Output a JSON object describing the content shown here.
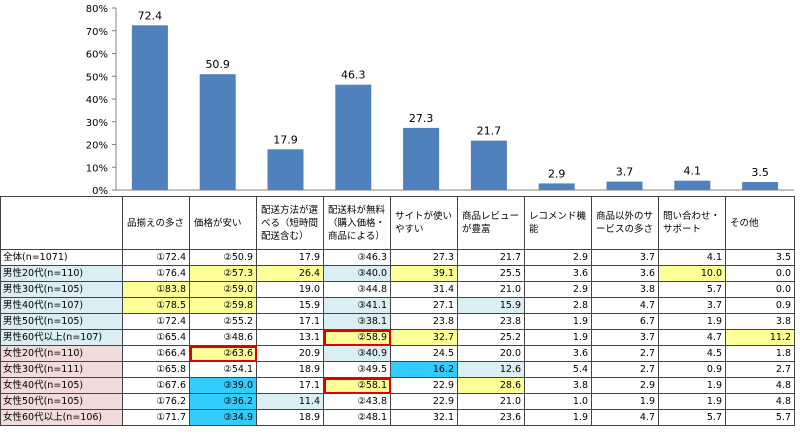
{
  "chart_data": {
    "type": "bar",
    "categories": [
      "品揃えの多さ",
      "価格が安い",
      "配送方法が選べる（短時間配送含む）",
      "配送料が無料（購入価格・商品による）",
      "サイトが使いやすい",
      "商品レビューが豊富",
      "レコメンド機能",
      "商品以外のサービスの多さ",
      "問い合わせ・サポート",
      "その他"
    ],
    "values": [
      72.4,
      50.9,
      17.9,
      46.3,
      27.3,
      21.7,
      2.9,
      3.7,
      4.1,
      3.5
    ],
    "value_labels": [
      "72.4",
      "50.9",
      "17.9",
      "46.3",
      "27.3",
      "21.7",
      "2.9",
      "3.7",
      "4.1",
      "3.5"
    ],
    "ylim": [
      0,
      80
    ],
    "yticks": [
      "0%",
      "10%",
      "20%",
      "30%",
      "40%",
      "50%",
      "60%",
      "70%",
      "80%"
    ],
    "bar_color": "#4f81bd",
    "grid": false
  },
  "table": {
    "headers": [
      "品揃えの多さ",
      "価格が安い",
      "配送方法が選べる（短時間配送含む）",
      "配送料が無料（購入価格・商品による）",
      "サイトが使いやすい",
      "商品レビューが豊富",
      "レコメンド機能",
      "商品以外のサービスの多さ",
      "問い合わせ・サポート",
      "その他"
    ],
    "colors": {
      "male_row": "#dbeef4",
      "female_row": "#f2dcdb",
      "yellow": "#ffff99",
      "light_blue": "#daeef3",
      "cyan": "#33ccff",
      "red_border": "#e00000"
    },
    "rows": [
      {
        "label": "全体(n=1071)",
        "group": "all",
        "cells": [
          {
            "t": "①72.4"
          },
          {
            "t": "②50.9"
          },
          {
            "t": "17.9"
          },
          {
            "t": "③46.3"
          },
          {
            "t": "27.3"
          },
          {
            "t": "21.7"
          },
          {
            "t": "2.9"
          },
          {
            "t": "3.7"
          },
          {
            "t": "4.1"
          },
          {
            "t": "3.5"
          }
        ]
      },
      {
        "label": "男性20代(n=110)",
        "group": "male",
        "cells": [
          {
            "t": "①76.4"
          },
          {
            "t": "②57.3",
            "bg": "yellow"
          },
          {
            "t": "26.4",
            "bg": "yellow"
          },
          {
            "t": "③40.0",
            "bg": "light_blue"
          },
          {
            "t": "39.1",
            "bg": "yellow"
          },
          {
            "t": "25.5"
          },
          {
            "t": "3.6"
          },
          {
            "t": "3.6"
          },
          {
            "t": "10.0",
            "bg": "yellow"
          },
          {
            "t": "0.0"
          }
        ]
      },
      {
        "label": "男性30代(n=105)",
        "group": "male",
        "cells": [
          {
            "t": "①83.8",
            "bg": "yellow"
          },
          {
            "t": "②59.0",
            "bg": "yellow"
          },
          {
            "t": "19.0"
          },
          {
            "t": "③44.8"
          },
          {
            "t": "31.4"
          },
          {
            "t": "21.0"
          },
          {
            "t": "2.9"
          },
          {
            "t": "3.8"
          },
          {
            "t": "5.7"
          },
          {
            "t": "0.0"
          }
        ]
      },
      {
        "label": "男性40代(n=107)",
        "group": "male",
        "cells": [
          {
            "t": "①78.5",
            "bg": "yellow"
          },
          {
            "t": "②59.8",
            "bg": "yellow"
          },
          {
            "t": "15.9"
          },
          {
            "t": "③41.1",
            "bg": "light_blue"
          },
          {
            "t": "27.1"
          },
          {
            "t": "15.9",
            "bg": "light_blue"
          },
          {
            "t": "2.8"
          },
          {
            "t": "4.7"
          },
          {
            "t": "3.7"
          },
          {
            "t": "0.9"
          }
        ]
      },
      {
        "label": "男性50代(n=105)",
        "group": "male",
        "cells": [
          {
            "t": "①72.4"
          },
          {
            "t": "②55.2"
          },
          {
            "t": "17.1"
          },
          {
            "t": "③38.1",
            "bg": "light_blue"
          },
          {
            "t": "23.8"
          },
          {
            "t": "23.8"
          },
          {
            "t": "1.9"
          },
          {
            "t": "6.7"
          },
          {
            "t": "1.9"
          },
          {
            "t": "3.8"
          }
        ]
      },
      {
        "label": "男性60代以上(n=107)",
        "group": "male",
        "cells": [
          {
            "t": "①65.4"
          },
          {
            "t": "③48.6"
          },
          {
            "t": "13.1"
          },
          {
            "t": "②58.9",
            "bg": "yellow",
            "border": true
          },
          {
            "t": "32.7",
            "bg": "yellow"
          },
          {
            "t": "25.2"
          },
          {
            "t": "1.9"
          },
          {
            "t": "3.7"
          },
          {
            "t": "4.7"
          },
          {
            "t": "11.2",
            "bg": "yellow"
          }
        ]
      },
      {
        "label": "女性20代(n=110)",
        "group": "female",
        "cells": [
          {
            "t": "①66.4"
          },
          {
            "t": "②63.6",
            "bg": "yellow",
            "border": true
          },
          {
            "t": "20.9"
          },
          {
            "t": "③40.9",
            "bg": "light_blue"
          },
          {
            "t": "24.5"
          },
          {
            "t": "20.0"
          },
          {
            "t": "3.6"
          },
          {
            "t": "2.7"
          },
          {
            "t": "4.5"
          },
          {
            "t": "1.8"
          }
        ]
      },
      {
        "label": "女性30代(n=111)",
        "group": "female",
        "cells": [
          {
            "t": "①65.8"
          },
          {
            "t": "②54.1"
          },
          {
            "t": "18.9"
          },
          {
            "t": "③49.5"
          },
          {
            "t": "16.2",
            "bg": "cyan"
          },
          {
            "t": "12.6",
            "bg": "light_blue"
          },
          {
            "t": "5.4"
          },
          {
            "t": "2.7"
          },
          {
            "t": "0.9"
          },
          {
            "t": "2.7"
          }
        ]
      },
      {
        "label": "女性40代(n=105)",
        "group": "female",
        "cells": [
          {
            "t": "①67.6"
          },
          {
            "t": "③39.0",
            "bg": "cyan"
          },
          {
            "t": "17.1"
          },
          {
            "t": "②58.1",
            "bg": "yellow",
            "border": true
          },
          {
            "t": "22.9"
          },
          {
            "t": "28.6",
            "bg": "yellow"
          },
          {
            "t": "3.8"
          },
          {
            "t": "2.9"
          },
          {
            "t": "1.9"
          },
          {
            "t": "4.8"
          }
        ]
      },
      {
        "label": "女性50代(n=105)",
        "group": "female",
        "cells": [
          {
            "t": "①76.2"
          },
          {
            "t": "③36.2",
            "bg": "cyan"
          },
          {
            "t": "11.4",
            "bg": "light_blue"
          },
          {
            "t": "②43.8"
          },
          {
            "t": "22.9"
          },
          {
            "t": "21.0"
          },
          {
            "t": "1.0"
          },
          {
            "t": "1.9"
          },
          {
            "t": "1.9"
          },
          {
            "t": "4.8"
          }
        ]
      },
      {
        "label": "女性60代以上(n=106)",
        "group": "female",
        "cells": [
          {
            "t": "①71.7"
          },
          {
            "t": "③34.9",
            "bg": "cyan"
          },
          {
            "t": "18.9"
          },
          {
            "t": "②48.1"
          },
          {
            "t": "32.1"
          },
          {
            "t": "23.6"
          },
          {
            "t": "1.9"
          },
          {
            "t": "4.7"
          },
          {
            "t": "5.7"
          },
          {
            "t": "5.7"
          }
        ]
      }
    ]
  }
}
